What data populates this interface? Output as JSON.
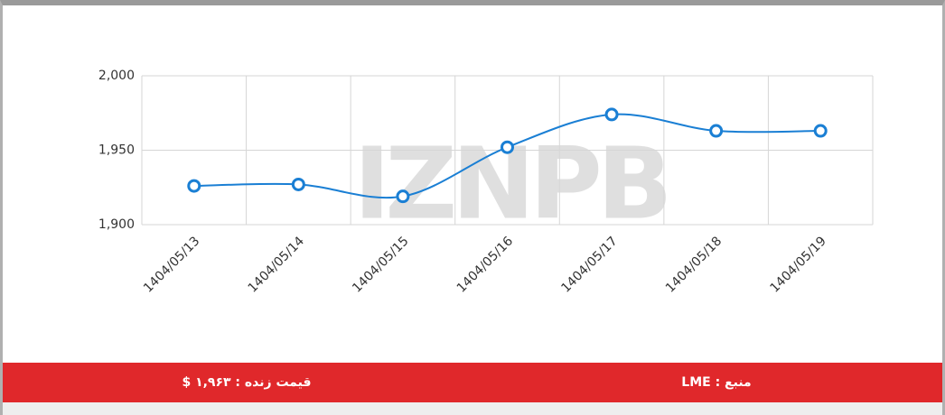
{
  "chart_data": {
    "type": "line",
    "categories": [
      "1404/05/13",
      "1404/05/14",
      "1404/05/15",
      "1404/05/16",
      "1404/05/17",
      "1404/05/18",
      "1404/05/19"
    ],
    "values": [
      1926,
      1927,
      1919,
      1952,
      1974,
      1963,
      1963
    ],
    "color": "#1a7fd4",
    "ylim": [
      1900,
      2000
    ],
    "yticks": [
      {
        "value": 1900,
        "label": "1,900"
      },
      {
        "value": 1950,
        "label": "1,950"
      },
      {
        "value": 2000,
        "label": "2,000"
      }
    ],
    "grid": true
  },
  "watermark": "IZNPB",
  "footer": {
    "source": "منبع : LME",
    "live_price": "قیمت زنده : ۱,۹۶۳ $"
  }
}
